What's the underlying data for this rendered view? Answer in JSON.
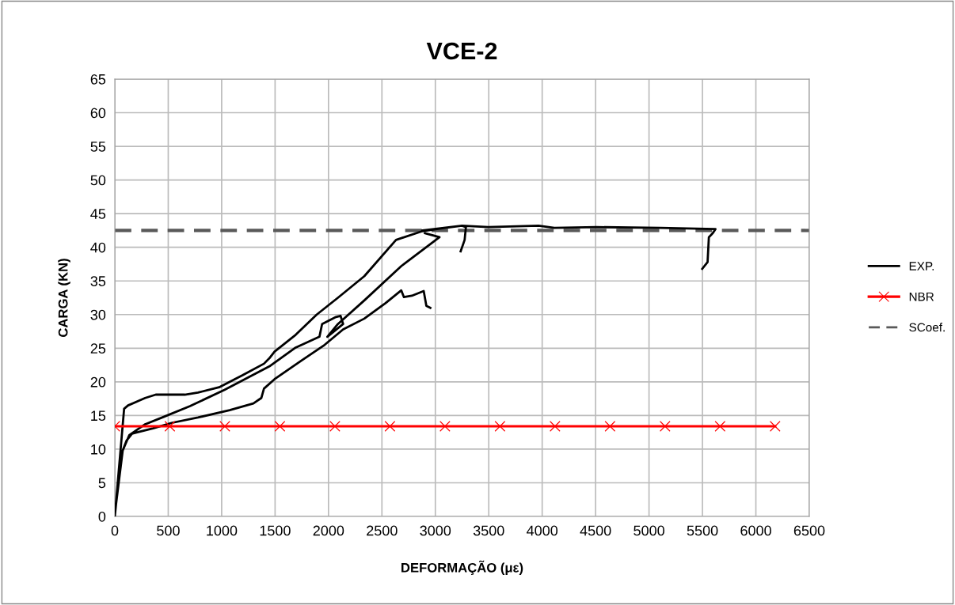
{
  "chart_data": {
    "type": "line",
    "title": "VCE-2",
    "xlabel": "DEFORMAÇÃO (με)",
    "ylabel": "CARGA (KN)",
    "xlim": [
      0,
      6500
    ],
    "xticks": [
      0,
      500,
      1000,
      1500,
      2000,
      2500,
      3000,
      3500,
      4000,
      4500,
      5000,
      5500,
      6000,
      6500
    ],
    "ylim": [
      0,
      65
    ],
    "yticks": [
      0,
      5,
      10,
      15,
      20,
      25,
      30,
      35,
      40,
      45,
      50,
      55,
      60,
      65
    ],
    "grid": true,
    "legend": "right",
    "series": [
      {
        "name": "EXP.",
        "color": "#000000",
        "marker": "none",
        "line_style": "solid",
        "x": [
          0,
          37,
          74,
          111,
          161,
          210,
          358,
          531,
          778,
          1075,
          1297,
          1371,
          1396,
          1495,
          1742,
          1964,
          2137,
          2335,
          2533,
          2681,
          2706,
          2780,
          2891,
          2916,
          2953,
          null,
          0,
          74,
          136,
          284,
          457,
          704,
          1026,
          1446,
          1693,
          1915,
          1940,
          2063,
          2113,
          2137,
          1989,
          2088,
          2335,
          2681,
          3039,
          2903,
          null,
          0,
          87,
          124,
          284,
          383,
          655,
          778,
          976,
          1198,
          1396,
          1446,
          1495,
          1693,
          1890,
          2088,
          2335,
          2632,
          2879,
          3052,
          3249,
          3286,
          null,
          3286,
          3274,
          3237,
          null,
          2879,
          3249,
          3496,
          3966,
          4114,
          4510,
          5103,
          5622,
          5597,
          5560,
          5548,
          5498
        ],
        "values": [
          0,
          5.8,
          9.8,
          11.3,
          12.3,
          12.5,
          13.1,
          13.9,
          14.7,
          15.8,
          16.8,
          17.6,
          19.0,
          20.4,
          23.1,
          25.5,
          27.8,
          29.4,
          31.7,
          33.6,
          32.6,
          32.8,
          33.5,
          31.3,
          31.0,
          null,
          0.35,
          9.8,
          12.1,
          13.7,
          14.8,
          16.4,
          18.8,
          22.3,
          25.1,
          26.7,
          28.6,
          29.6,
          29.8,
          28.6,
          26.7,
          28.6,
          32.1,
          37.2,
          41.5,
          42.1,
          null,
          0,
          16.0,
          16.5,
          17.6,
          18.1,
          18.1,
          18.4,
          19.2,
          21.0,
          22.7,
          23.5,
          24.5,
          27.0,
          30.0,
          32.5,
          35.7,
          41.1,
          42.4,
          42.8,
          43.2,
          43.0,
          null,
          43.0,
          41.1,
          39.4,
          null,
          42.5,
          43.2,
          43.0,
          43.2,
          42.9,
          43.0,
          42.9,
          42.7,
          42.1,
          41.5,
          37.8,
          36.8
        ]
      },
      {
        "name": "NBR",
        "color": "#ff0000",
        "marker": "cross",
        "line_style": "solid",
        "x": [
          0,
          515,
          1030,
          1545,
          2060,
          2575,
          3090,
          3605,
          4120,
          4635,
          5150,
          5665,
          6180
        ],
        "values": [
          13.4,
          13.4,
          13.4,
          13.4,
          13.4,
          13.4,
          13.4,
          13.4,
          13.4,
          13.4,
          13.4,
          13.4,
          13.4
        ]
      }
    ],
    "ref_lines": [
      {
        "axis": "y",
        "value": 42.5,
        "label": "SCoef.",
        "color": "#595959",
        "line_style": "dashed"
      }
    ]
  }
}
